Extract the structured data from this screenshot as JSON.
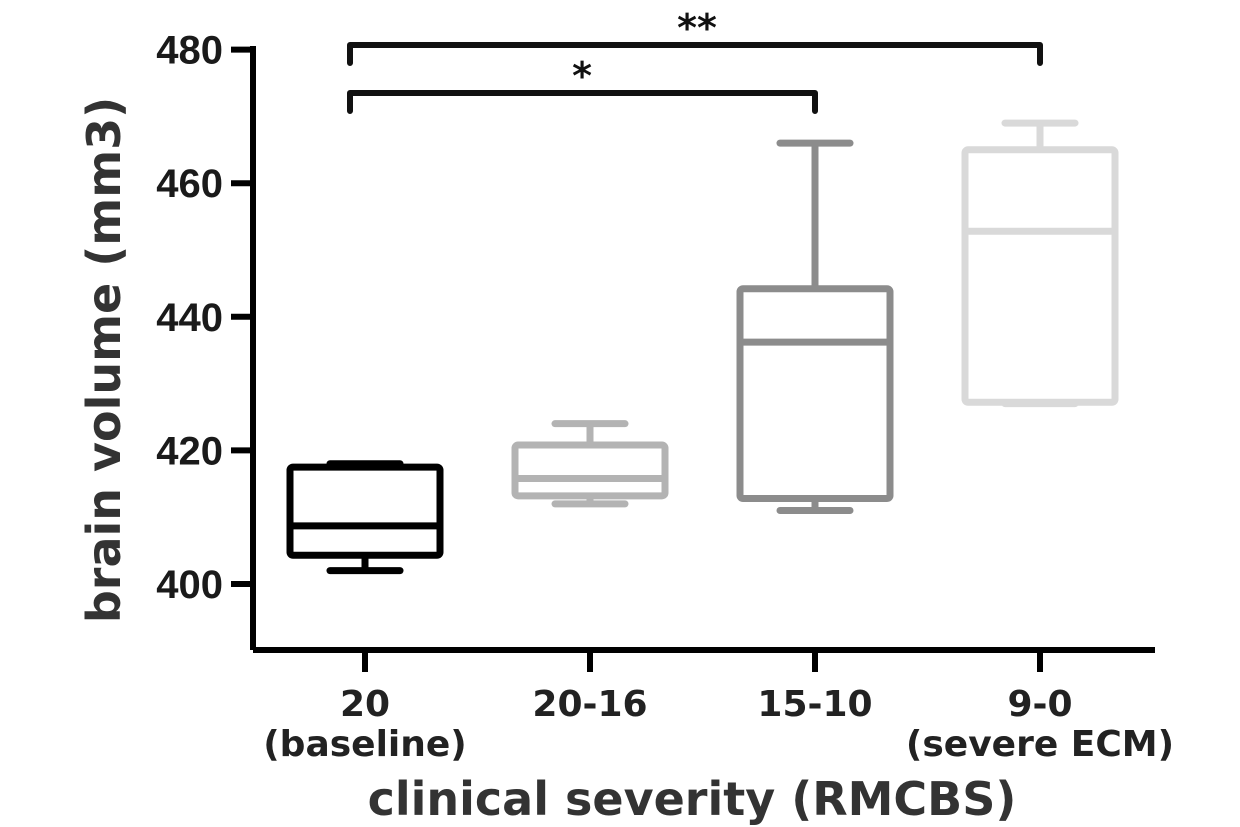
{
  "chart_data": {
    "type": "box",
    "ylabel": "brain volume (mm3)",
    "xlabel": "clinical severity (RMCBS)",
    "ylim": [
      390,
      480
    ],
    "yticks": [
      400,
      420,
      440,
      460,
      480
    ],
    "ytick_labels": [
      "400",
      "420",
      "440",
      "460",
      "480"
    ],
    "groups": [
      {
        "label": "20",
        "sublabel": "(baseline)",
        "color": "#000000",
        "min": 402,
        "q1": 404.3,
        "median": 408.7,
        "q3": 417.5,
        "max": 418
      },
      {
        "label": "20-16",
        "sublabel": "",
        "color": "#b3b3b3",
        "min": 412,
        "q1": 413.2,
        "median": 415.8,
        "q3": 420.8,
        "max": 424
      },
      {
        "label": "15-10",
        "sublabel": "",
        "color": "#8c8c8c",
        "min": 411,
        "q1": 412.8,
        "median": 436.2,
        "q3": 444.2,
        "max": 466
      },
      {
        "label": "9-0",
        "sublabel": "(severe ECM)",
        "color": "#d9d9d9",
        "min": 427,
        "q1": 427.2,
        "median": 452.8,
        "q3": 465,
        "max": 469
      }
    ],
    "significance": [
      {
        "from": 0,
        "to": 3,
        "label": "**"
      },
      {
        "from": 0,
        "to": 2,
        "label": "*"
      }
    ]
  }
}
